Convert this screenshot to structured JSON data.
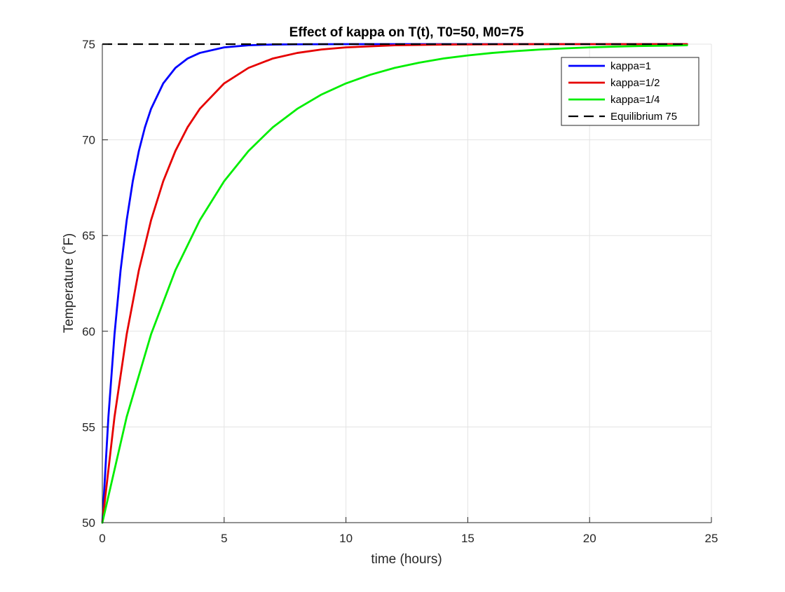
{
  "chart_data": {
    "type": "line",
    "title": "Effect of kappa on T(t), T0=50, M0=75",
    "xlabel": "time (hours)",
    "ylabel": "Temperature (˚F)",
    "xlim": [
      0,
      25
    ],
    "ylim": [
      50,
      75
    ],
    "xticks": [
      0,
      5,
      10,
      15,
      20,
      25
    ],
    "yticks": [
      50,
      55,
      60,
      65,
      70,
      75
    ],
    "xtick_labels": [
      "0",
      "5",
      "10",
      "15",
      "20",
      "25"
    ],
    "ytick_labels": [
      "50",
      "55",
      "60",
      "65",
      "70",
      "75"
    ],
    "grid": true,
    "legend_position": "top-right",
    "series": [
      {
        "name": "kappa=1",
        "color": "#0000ff",
        "style": "solid",
        "x": [
          0,
          0.25,
          0.5,
          0.75,
          1,
          1.25,
          1.5,
          1.75,
          2,
          2.5,
          3,
          3.5,
          4,
          5,
          6,
          7,
          8,
          10,
          12,
          14,
          16,
          18,
          20,
          22,
          24
        ],
        "y": [
          50,
          55.53,
          59.84,
          63.19,
          65.8,
          67.84,
          69.42,
          70.66,
          71.62,
          72.95,
          73.76,
          74.25,
          74.54,
          74.83,
          74.94,
          74.98,
          74.99,
          75.0,
          75.0,
          75.0,
          75.0,
          75.0,
          75.0,
          75.0,
          75.0
        ]
      },
      {
        "name": "kappa=1/2",
        "color": "#e60000",
        "style": "solid",
        "x": [
          0,
          0.5,
          1,
          1.5,
          2,
          2.5,
          3,
          3.5,
          4,
          5,
          6,
          7,
          8,
          9,
          10,
          12,
          14,
          16,
          18,
          20,
          22,
          24
        ],
        "y": [
          50,
          55.53,
          59.84,
          63.19,
          65.8,
          67.84,
          69.42,
          70.66,
          71.62,
          72.95,
          73.76,
          74.25,
          74.54,
          74.72,
          74.83,
          74.94,
          74.98,
          74.99,
          75.0,
          75.0,
          75.0,
          75.0
        ]
      },
      {
        "name": "kappa=1/4",
        "color": "#00ee00",
        "style": "solid",
        "x": [
          0,
          1,
          2,
          3,
          4,
          5,
          6,
          7,
          8,
          9,
          10,
          11,
          12,
          13,
          14,
          15,
          16,
          17,
          18,
          19,
          20,
          21,
          22,
          23,
          24
        ],
        "y": [
          50,
          55.53,
          59.84,
          63.19,
          65.8,
          67.84,
          69.42,
          70.66,
          71.62,
          72.37,
          72.95,
          73.4,
          73.76,
          74.03,
          74.25,
          74.41,
          74.54,
          74.64,
          74.72,
          74.78,
          74.83,
          74.87,
          74.9,
          74.92,
          74.94
        ]
      },
      {
        "name": "Equilibrium 75",
        "color": "#000000",
        "style": "dashed",
        "x": [
          0,
          24
        ],
        "y": [
          75,
          75
        ]
      }
    ]
  }
}
